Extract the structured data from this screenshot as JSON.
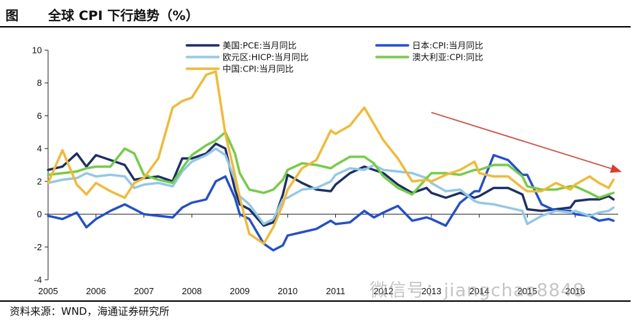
{
  "header": {
    "label": "图",
    "title": "全球 CPI 下行趋势（%）"
  },
  "footer": {
    "source": "资料来源：WND，海通证券研究所"
  },
  "watermark": {
    "text": "微信号：jiangchao8848"
  },
  "chart_data": {
    "type": "line",
    "title": "全球 CPI 下行趋势（%）",
    "xlabel": "",
    "ylabel": "",
    "xlim": [
      2005.0,
      2016.9
    ],
    "ylim": [
      -4,
      10
    ],
    "yticks": [
      -4,
      -2,
      0,
      2,
      4,
      6,
      8,
      10
    ],
    "xticks": [
      "2005",
      "2006",
      "2007",
      "2008",
      "2009",
      "2010",
      "2011",
      "2012",
      "2013",
      "2014",
      "2015",
      "2016"
    ],
    "legend_position": "top",
    "annotation": "red arrow pointing down-right (downward trend)",
    "series": [
      {
        "name": "美国:PCE:当月同比",
        "color": "#1a2f6b",
        "x": [
          2005.0,
          2005.3,
          2005.6,
          2005.8,
          2006.0,
          2006.3,
          2006.6,
          2006.8,
          2007.0,
          2007.3,
          2007.6,
          2007.8,
          2008.0,
          2008.3,
          2008.5,
          2008.7,
          2008.9,
          2009.0,
          2009.2,
          2009.5,
          2009.7,
          2009.9,
          2010.0,
          2010.3,
          2010.6,
          2010.9,
          2011.0,
          2011.3,
          2011.6,
          2011.8,
          2012.0,
          2012.3,
          2012.6,
          2012.9,
          2013.0,
          2013.3,
          2013.6,
          2013.9,
          2014.0,
          2014.3,
          2014.6,
          2014.9,
          2015.0,
          2015.3,
          2015.6,
          2015.9,
          2016.0,
          2016.3,
          2016.5,
          2016.7,
          2016.8
        ],
        "y": [
          2.7,
          2.9,
          3.7,
          2.9,
          3.6,
          3.3,
          3.0,
          2.1,
          2.2,
          2.3,
          2.0,
          3.4,
          3.4,
          3.7,
          4.3,
          4.0,
          1.5,
          0.6,
          0.3,
          -0.7,
          -0.5,
          1.2,
          2.4,
          1.9,
          1.5,
          1.4,
          1.8,
          2.5,
          2.9,
          2.7,
          2.5,
          1.8,
          1.3,
          1.6,
          1.3,
          1.0,
          1.3,
          1.0,
          1.1,
          1.6,
          1.6,
          1.2,
          0.3,
          0.2,
          0.3,
          0.4,
          0.8,
          0.9,
          0.9,
          1.1,
          0.9
        ]
      },
      {
        "name": "日本:CPI:当月同比",
        "color": "#1f4fd6",
        "x": [
          2005.0,
          2005.3,
          2005.6,
          2005.8,
          2006.0,
          2006.3,
          2006.6,
          2006.8,
          2007.0,
          2007.3,
          2007.6,
          2007.8,
          2008.0,
          2008.3,
          2008.5,
          2008.7,
          2008.9,
          2009.0,
          2009.2,
          2009.5,
          2009.7,
          2009.9,
          2010.0,
          2010.3,
          2010.6,
          2010.9,
          2011.0,
          2011.3,
          2011.6,
          2011.8,
          2012.0,
          2012.3,
          2012.6,
          2012.9,
          2013.0,
          2013.3,
          2013.6,
          2013.9,
          2014.0,
          2014.3,
          2014.6,
          2014.9,
          2015.0,
          2015.3,
          2015.6,
          2015.9,
          2016.0,
          2016.3,
          2016.5,
          2016.7,
          2016.8
        ],
        "y": [
          -0.1,
          -0.3,
          0.1,
          -0.8,
          -0.3,
          0.2,
          0.6,
          0.3,
          0.0,
          -0.1,
          -0.2,
          0.4,
          0.7,
          0.9,
          2.0,
          2.3,
          1.0,
          0.0,
          -0.3,
          -1.8,
          -2.2,
          -1.9,
          -1.3,
          -1.1,
          -0.9,
          -0.4,
          -0.6,
          -0.5,
          0.2,
          -0.2,
          0.1,
          0.5,
          -0.4,
          -0.2,
          -0.3,
          -0.7,
          0.7,
          1.4,
          1.4,
          3.6,
          3.3,
          2.4,
          2.4,
          0.6,
          0.2,
          0.2,
          0.0,
          -0.1,
          -0.4,
          -0.3,
          -0.4
        ]
      },
      {
        "name": "欧元区:HICP:当月同比",
        "color": "#8fc8ea",
        "x": [
          2005.0,
          2005.3,
          2005.6,
          2005.8,
          2006.0,
          2006.3,
          2006.6,
          2006.8,
          2007.0,
          2007.3,
          2007.6,
          2007.8,
          2008.0,
          2008.3,
          2008.5,
          2008.7,
          2008.9,
          2009.0,
          2009.2,
          2009.5,
          2009.7,
          2009.9,
          2010.0,
          2010.3,
          2010.6,
          2010.9,
          2011.0,
          2011.3,
          2011.6,
          2011.8,
          2012.0,
          2012.3,
          2012.6,
          2012.9,
          2013.0,
          2013.3,
          2013.6,
          2013.9,
          2014.0,
          2014.3,
          2014.6,
          2014.9,
          2015.0,
          2015.3,
          2015.6,
          2015.9,
          2016.0,
          2016.3,
          2016.5,
          2016.7,
          2016.8
        ],
        "y": [
          1.9,
          2.1,
          2.2,
          2.5,
          2.3,
          2.4,
          2.3,
          1.6,
          1.8,
          1.9,
          1.7,
          2.6,
          3.2,
          3.6,
          4.0,
          3.6,
          2.1,
          1.1,
          0.6,
          -0.6,
          -0.3,
          0.9,
          1.0,
          1.5,
          1.6,
          2.0,
          2.4,
          2.8,
          2.7,
          3.0,
          2.7,
          2.6,
          2.5,
          2.2,
          1.9,
          1.4,
          1.5,
          0.8,
          0.7,
          0.6,
          0.4,
          0.2,
          -0.6,
          -0.1,
          0.2,
          0.1,
          0.2,
          -0.1,
          0.1,
          0.2,
          0.4
        ]
      },
      {
        "name": "澳大利亚:CPI:同比",
        "color": "#6fcf3f",
        "x": [
          2005.0,
          2005.3,
          2005.6,
          2005.8,
          2006.0,
          2006.3,
          2006.6,
          2006.8,
          2007.0,
          2007.3,
          2007.6,
          2007.8,
          2008.0,
          2008.3,
          2008.5,
          2008.7,
          2008.9,
          2009.0,
          2009.2,
          2009.5,
          2009.7,
          2009.9,
          2010.0,
          2010.3,
          2010.6,
          2010.9,
          2011.0,
          2011.3,
          2011.6,
          2011.8,
          2012.0,
          2012.3,
          2012.6,
          2012.9,
          2013.0,
          2013.3,
          2013.6,
          2013.9,
          2014.0,
          2014.3,
          2014.6,
          2014.9,
          2015.0,
          2015.3,
          2015.6,
          2015.9,
          2016.0,
          2016.3,
          2016.5,
          2016.7,
          2016.8
        ],
        "y": [
          2.4,
          2.5,
          2.6,
          2.8,
          2.9,
          2.9,
          4.0,
          3.7,
          2.4,
          2.1,
          1.9,
          2.8,
          3.6,
          4.2,
          4.5,
          5.0,
          3.7,
          2.5,
          1.5,
          1.3,
          1.5,
          2.1,
          2.7,
          3.1,
          3.0,
          2.8,
          3.0,
          3.5,
          3.5,
          3.1,
          2.3,
          1.6,
          1.2,
          2.2,
          2.5,
          2.5,
          2.4,
          2.7,
          2.7,
          3.0,
          3.0,
          2.3,
          1.7,
          1.5,
          1.5,
          1.7,
          1.7,
          1.3,
          1.0,
          1.2,
          1.3
        ]
      },
      {
        "name": "中国:CPI:当月同比",
        "color": "#f5b82e",
        "x": [
          2005.0,
          2005.3,
          2005.6,
          2005.8,
          2006.0,
          2006.3,
          2006.6,
          2006.8,
          2007.0,
          2007.3,
          2007.6,
          2007.8,
          2008.0,
          2008.3,
          2008.5,
          2008.7,
          2008.9,
          2009.0,
          2009.2,
          2009.5,
          2009.7,
          2009.9,
          2010.0,
          2010.3,
          2010.6,
          2010.9,
          2011.0,
          2011.3,
          2011.6,
          2011.8,
          2012.0,
          2012.3,
          2012.6,
          2012.9,
          2013.0,
          2013.3,
          2013.6,
          2013.9,
          2014.0,
          2014.3,
          2014.6,
          2014.9,
          2015.0,
          2015.3,
          2015.6,
          2015.9,
          2016.0,
          2016.3,
          2016.5,
          2016.7,
          2016.8
        ],
        "y": [
          1.9,
          3.9,
          1.8,
          1.2,
          1.9,
          1.4,
          1.0,
          1.9,
          2.2,
          3.4,
          6.5,
          6.9,
          7.1,
          8.5,
          8.7,
          4.9,
          2.4,
          1.0,
          -1.2,
          -1.8,
          -0.8,
          0.6,
          1.5,
          2.8,
          3.3,
          5.1,
          4.9,
          5.4,
          6.5,
          5.5,
          4.5,
          3.4,
          2.0,
          2.1,
          2.0,
          2.4,
          2.7,
          3.2,
          2.5,
          2.3,
          2.3,
          1.6,
          1.4,
          1.4,
          1.9,
          1.5,
          1.8,
          2.3,
          1.9,
          1.6,
          2.1
        ]
      }
    ],
    "arrow": {
      "from": [
        2013.0,
        6.2
      ],
      "to": [
        2016.95,
        2.6
      ],
      "color": "#e8382a"
    }
  }
}
